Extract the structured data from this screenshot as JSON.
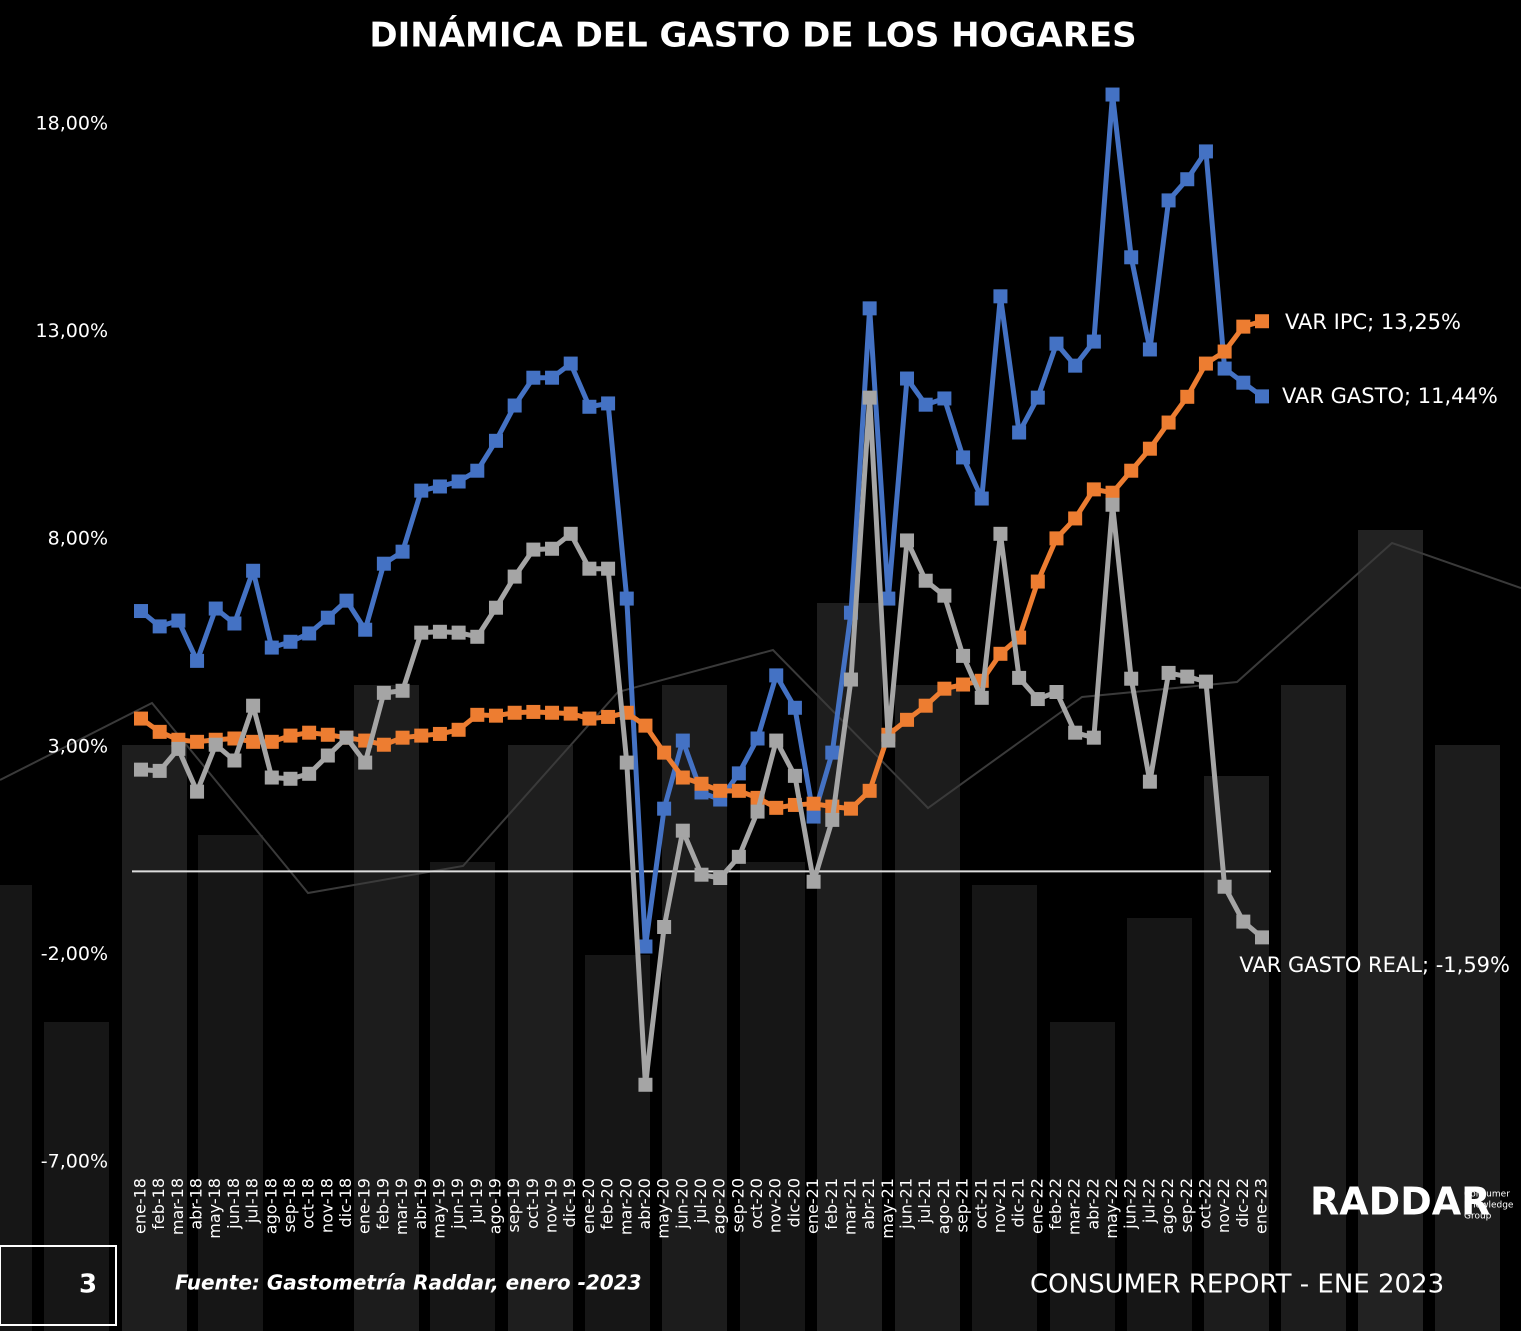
{
  "chart_data": {
    "type": "line",
    "title": "DINÁMICA DEL GASTO DE LOS HOGARES",
    "categories": [
      "ene-18",
      "feb-18",
      "mar-18",
      "abr-18",
      "may-18",
      "jun-18",
      "jul-18",
      "ago-18",
      "sep-18",
      "oct-18",
      "nov-18",
      "dic-18",
      "ene-19",
      "feb-19",
      "mar-19",
      "abr-19",
      "may-19",
      "jun-19",
      "jul-19",
      "ago-19",
      "sep-19",
      "oct-19",
      "nov-19",
      "dic-19",
      "ene-20",
      "feb-20",
      "mar-20",
      "abr-20",
      "may-20",
      "jun-20",
      "jul-20",
      "ago-20",
      "sep-20",
      "oct-20",
      "nov-20",
      "dic-20",
      "ene-21",
      "feb-21",
      "mar-21",
      "abr-21",
      "may-21",
      "jun-21",
      "jul-21",
      "ago-21",
      "sep-21",
      "oct-21",
      "nov-21",
      "dic-21",
      "ene-22",
      "feb-22",
      "mar-22",
      "abr-22",
      "may-22",
      "jun-22",
      "jul-22",
      "ago-22",
      "sep-22",
      "oct-22",
      "nov-22",
      "dic-22",
      "ene-23"
    ],
    "series": [
      {
        "name": "VAR GASTO; 11,44%",
        "color": "#4472c4",
        "values": [
          6.27,
          5.9,
          6.04,
          5.07,
          6.33,
          5.97,
          7.24,
          5.39,
          5.53,
          5.73,
          6.11,
          6.52,
          5.82,
          7.41,
          7.7,
          9.17,
          9.27,
          9.39,
          9.65,
          10.37,
          11.22,
          11.89,
          11.89,
          12.23,
          11.19,
          11.27,
          6.57,
          -1.81,
          1.51,
          3.15,
          1.9,
          1.73,
          2.36,
          3.2,
          4.72,
          3.94,
          1.32,
          2.86,
          6.23,
          13.56,
          6.57,
          11.87,
          11.24,
          11.39,
          9.97,
          8.98,
          13.85,
          10.57,
          11.41,
          12.71,
          12.18,
          12.76,
          18.71,
          14.79,
          12.57,
          16.16,
          16.67,
          17.34,
          12.11,
          11.77,
          11.44
        ]
      },
      {
        "name": "VAR IPC; 13,25%",
        "color": "#ed7d31",
        "values": [
          3.68,
          3.36,
          3.17,
          3.12,
          3.17,
          3.2,
          3.12,
          3.12,
          3.27,
          3.34,
          3.29,
          3.22,
          3.15,
          3.05,
          3.22,
          3.27,
          3.31,
          3.41,
          3.77,
          3.75,
          3.82,
          3.84,
          3.82,
          3.8,
          3.68,
          3.72,
          3.82,
          3.51,
          2.86,
          2.26,
          2.11,
          1.94,
          1.94,
          1.77,
          1.53,
          1.6,
          1.63,
          1.56,
          1.51,
          1.94,
          3.29,
          3.65,
          3.99,
          4.4,
          4.5,
          4.59,
          5.24,
          5.63,
          6.98,
          8.02,
          8.5,
          9.2,
          9.12,
          9.65,
          10.18,
          10.81,
          11.43,
          12.23,
          12.52,
          13.12,
          13.25
        ]
      },
      {
        "name": "VAR GASTO REAL; -1,59%",
        "color": "#a5a5a5",
        "values": [
          2.45,
          2.42,
          2.95,
          1.92,
          3.05,
          2.67,
          3.99,
          2.26,
          2.23,
          2.35,
          2.79,
          3.22,
          2.62,
          4.3,
          4.35,
          5.75,
          5.77,
          5.75,
          5.65,
          6.35,
          7.1,
          7.75,
          7.77,
          8.13,
          7.29,
          7.29,
          2.62,
          -5.14,
          -1.34,
          0.98,
          -0.08,
          -0.16,
          0.35,
          1.44,
          3.15,
          2.3,
          -0.25,
          1.24,
          4.62,
          11.41,
          3.15,
          7.97,
          7.0,
          6.64,
          5.19,
          4.18,
          8.13,
          4.66,
          4.15,
          4.32,
          3.34,
          3.22,
          8.83,
          4.64,
          2.16,
          4.78,
          4.69,
          4.57,
          -0.37,
          -1.21,
          -1.59
        ]
      }
    ],
    "ylim": [
      -7,
      19
    ],
    "yticks": [
      {
        "value": -7,
        "label": "-7,00%"
      },
      {
        "value": -2,
        "label": "-2,00%"
      },
      {
        "value": 3,
        "label": "3,00%"
      },
      {
        "value": 8,
        "label": "8,00%"
      },
      {
        "value": 13,
        "label": "13,00%"
      },
      {
        "value": 18,
        "label": "18,00%"
      }
    ],
    "grid": false
  },
  "footer": {
    "page_number": "3",
    "source": "Fuente: Gastometría Raddar, enero -2023",
    "report": "CONSUMER REPORT - ENE 2023",
    "logo": "RADDAR",
    "logo_tagline": [
      "Consumer",
      "Knowledge",
      "Group"
    ]
  }
}
